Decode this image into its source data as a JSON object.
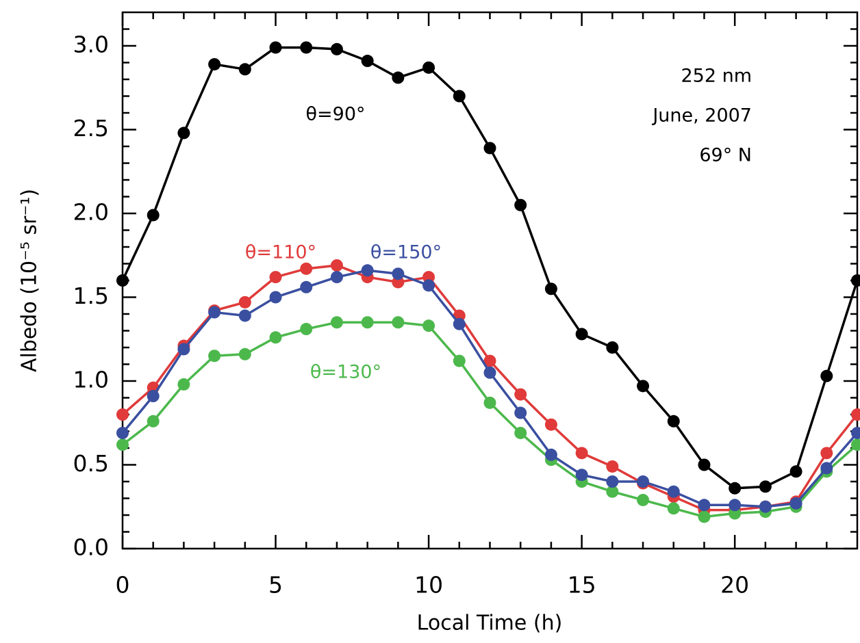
{
  "chart_data": {
    "type": "line",
    "xlabel": "Local Time (h)",
    "ylabel": "Albedo (10⁻⁵ sr⁻¹)",
    "annotations": [
      "252 nm",
      "June, 2007",
      "69° N"
    ],
    "x": [
      0,
      1,
      2,
      3,
      4,
      5,
      6,
      7,
      8,
      9,
      10,
      11,
      12,
      13,
      14,
      15,
      16,
      17,
      18,
      19,
      20,
      21,
      22,
      23,
      24
    ],
    "xlim": [
      0,
      24
    ],
    "ylim": [
      0,
      3.2
    ],
    "xticks": [
      0,
      5,
      10,
      15,
      20
    ],
    "yticks": [
      {
        "value": 0,
        "label": "0.0"
      },
      0.5,
      {
        "value": 1,
        "label": "1.0"
      },
      1.5,
      {
        "value": 2,
        "label": "2.0"
      },
      2.5,
      {
        "value": 3,
        "label": "3.0"
      }
    ],
    "xminorticks": [
      1,
      2,
      3,
      4,
      6,
      7,
      8,
      9,
      11,
      12,
      13,
      14,
      16,
      17,
      18,
      19,
      21,
      22,
      23
    ],
    "yminorticks": [
      0.1,
      0.2,
      0.3,
      0.4,
      0.6,
      0.7,
      0.8,
      0.9,
      1.1,
      1.2,
      1.3,
      1.4,
      1.6,
      1.7,
      1.8,
      1.9,
      2.1,
      2.2,
      2.3,
      2.4,
      2.6,
      2.7,
      2.8,
      2.9,
      3.1
    ],
    "series": [
      {
        "name": "θ=90°",
        "color": "#000000",
        "values": [
          1.6,
          1.99,
          2.48,
          2.89,
          2.86,
          2.99,
          2.99,
          2.98,
          2.91,
          2.81,
          2.87,
          2.7,
          2.39,
          2.05,
          1.55,
          1.28,
          1.2,
          0.97,
          0.76,
          0.5,
          0.36,
          0.37,
          0.46,
          1.03,
          1.6
        ]
      },
      {
        "name": "θ=110°",
        "color": "#e03a3a",
        "values": [
          0.8,
          0.96,
          1.21,
          1.42,
          1.47,
          1.62,
          1.67,
          1.69,
          1.62,
          1.59,
          1.62,
          1.39,
          1.12,
          0.92,
          0.74,
          0.57,
          0.49,
          0.39,
          0.31,
          0.23,
          0.23,
          0.25,
          0.28,
          0.57,
          0.8
        ]
      },
      {
        "name": "θ=130°",
        "color": "#4cb84c",
        "values": [
          0.62,
          0.76,
          0.98,
          1.15,
          1.16,
          1.26,
          1.31,
          1.35,
          1.35,
          1.35,
          1.33,
          1.12,
          0.87,
          0.69,
          0.53,
          0.4,
          0.34,
          0.29,
          0.24,
          0.19,
          0.21,
          0.22,
          0.25,
          0.46,
          0.62
        ]
      },
      {
        "name": "θ=150°",
        "color": "#3a4fa0",
        "values": [
          0.69,
          0.91,
          1.19,
          1.41,
          1.39,
          1.5,
          1.56,
          1.62,
          1.66,
          1.64,
          1.57,
          1.34,
          1.05,
          0.81,
          0.56,
          0.44,
          0.4,
          0.4,
          0.34,
          0.26,
          0.26,
          0.25,
          0.27,
          0.48,
          0.69
        ]
      }
    ]
  }
}
